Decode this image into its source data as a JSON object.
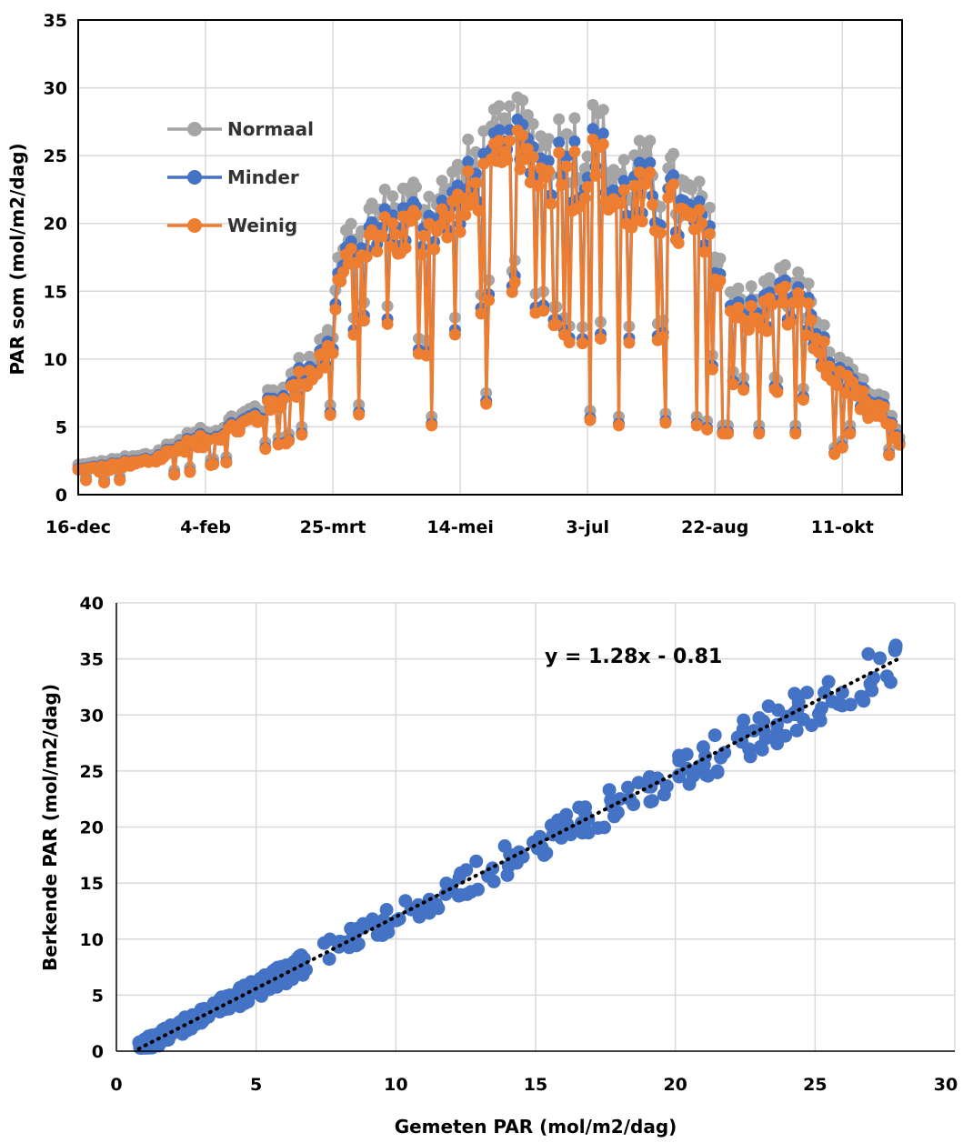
{
  "chart_data": [
    {
      "type": "line",
      "ylabel": "PAR som (mol/m2/dag)",
      "xlabel": "",
      "x_tick_labels": [
        "16-dec",
        "4-feb",
        "25-mrt",
        "14-mei",
        "3-jul",
        "22-aug",
        "11-okt"
      ],
      "y_ticks": [
        0,
        5,
        10,
        15,
        20,
        25,
        30,
        35
      ],
      "ylim": [
        0,
        35
      ],
      "x_range_days": [
        0,
        317
      ],
      "grid": true,
      "legend": "top-left",
      "series": [
        {
          "name": "Normaal",
          "color": "#a5a5a5"
        },
        {
          "name": "Minder",
          "color": "#4472c4"
        },
        {
          "name": "Weinig",
          "color": "#ed7d31"
        }
      ],
      "envelope": {
        "x_days": [
          0,
          10,
          20,
          30,
          40,
          50,
          60,
          70,
          80,
          90,
          98,
          100,
          110,
          120,
          130,
          140,
          150,
          160,
          170,
          180,
          190,
          200,
          210,
          220,
          230,
          240,
          250,
          260,
          270,
          280,
          290,
          300,
          310,
          316
        ],
        "low": [
          1.0,
          0.8,
          1.0,
          1.3,
          1.5,
          2.0,
          2.5,
          3.0,
          3.5,
          4.5,
          5.5,
          11.0,
          12.0,
          12.5,
          9.0,
          11.0,
          12.0,
          14.0,
          15.0,
          12.0,
          11.0,
          11.0,
          10.0,
          10.0,
          11.0,
          10.0,
          8.0,
          7.0,
          7.0,
          6.0,
          3.0,
          2.5,
          2.5,
          3.0
        ],
        "high": [
          2.0,
          2.2,
          2.5,
          3.0,
          4.0,
          4.5,
          5.5,
          6.5,
          8.0,
          10.5,
          12.0,
          17.0,
          20.0,
          21.0,
          22.0,
          22.0,
          24.0,
          26.0,
          27.0,
          26.0,
          26.5,
          27.0,
          24.0,
          24.0,
          23.0,
          21.0,
          16.0,
          14.0,
          16.0,
          15.0,
          10.0,
          8.0,
          6.5,
          4.0
        ]
      }
    },
    {
      "type": "scatter",
      "xlabel": "Gemeten PAR (mol/m2/dag)",
      "ylabel": "Berkende PAR (mol/m2/dag)",
      "xlim": [
        0,
        30
      ],
      "ylim": [
        0,
        40
      ],
      "x_ticks": [
        0,
        5,
        10,
        15,
        20,
        25,
        30
      ],
      "y_ticks": [
        0,
        5,
        10,
        15,
        20,
        25,
        30,
        35,
        40
      ],
      "grid": true,
      "marker_color": "#4472c4",
      "trendline": {
        "slope": 1.28,
        "intercept": -0.81,
        "x_range": [
          0.8,
          28
        ],
        "equation": "y = 1.28x - 0.81"
      },
      "points_summary": "about 340 points scattered tightly around the trendline for x between 0.8 and 28"
    }
  ]
}
